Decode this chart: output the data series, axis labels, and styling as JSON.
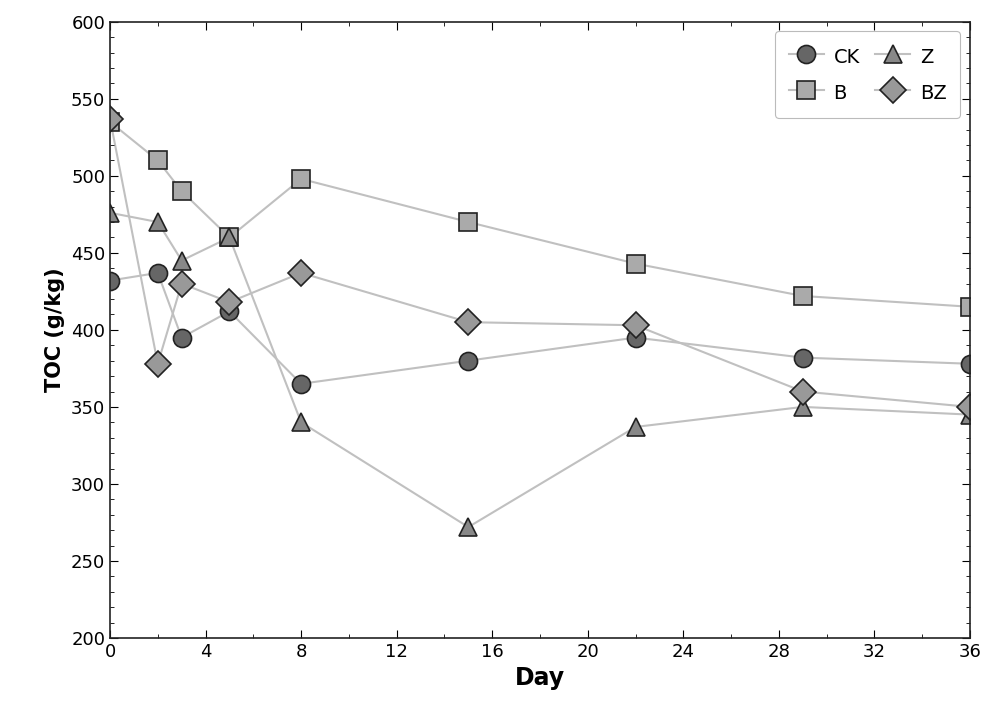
{
  "series_order": [
    "CK",
    "B",
    "Z",
    "BZ"
  ],
  "series": {
    "CK": {
      "x": [
        0,
        2,
        3,
        5,
        8,
        15,
        22,
        29,
        36
      ],
      "y": [
        432,
        437,
        395,
        412,
        365,
        380,
        395,
        382,
        378
      ],
      "color": "#666666",
      "marker": "o",
      "label": "CK"
    },
    "B": {
      "x": [
        0,
        2,
        3,
        5,
        8,
        15,
        22,
        29,
        36
      ],
      "y": [
        535,
        510,
        490,
        460,
        498,
        470,
        443,
        422,
        415
      ],
      "color": "#aaaaaa",
      "marker": "s",
      "label": "B"
    },
    "Z": {
      "x": [
        0,
        2,
        3,
        5,
        8,
        15,
        22,
        29,
        36
      ],
      "y": [
        476,
        470,
        445,
        460,
        340,
        272,
        337,
        350,
        345
      ],
      "color": "#888888",
      "marker": "^",
      "label": "Z"
    },
    "BZ": {
      "x": [
        0,
        2,
        3,
        5,
        8,
        15,
        22,
        29,
        36
      ],
      "y": [
        537,
        378,
        430,
        418,
        437,
        405,
        403,
        360,
        350
      ],
      "color": "#999999",
      "marker": "D",
      "label": "BZ"
    }
  },
  "xlabel": "Day",
  "ylabel": "TOC (g/kg)",
  "xlim": [
    0,
    36
  ],
  "ylim": [
    200,
    600
  ],
  "xticks": [
    0,
    4,
    8,
    12,
    16,
    20,
    24,
    28,
    32,
    36
  ],
  "yticks": [
    200,
    250,
    300,
    350,
    400,
    450,
    500,
    550,
    600
  ],
  "line_color": "#c0c0c0",
  "marker_size": 13,
  "line_width": 1.5,
  "xlabel_fontsize": 17,
  "ylabel_fontsize": 15,
  "tick_fontsize": 13,
  "legend_fontsize": 14,
  "background_color": "#ffffff"
}
